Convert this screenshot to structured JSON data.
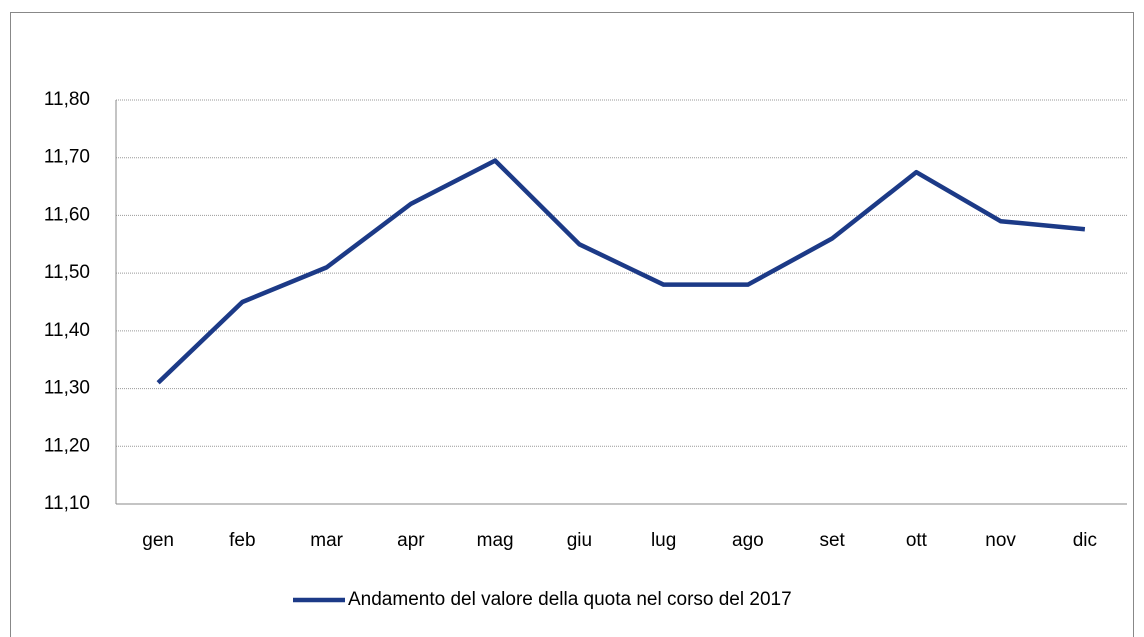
{
  "chart_data": {
    "type": "line",
    "categories": [
      "gen",
      "feb",
      "mar",
      "apr",
      "mag",
      "giu",
      "lug",
      "ago",
      "set",
      "ott",
      "nov",
      "dic"
    ],
    "series": [
      {
        "name": "Andamento del valore della quota nel corso del 2017",
        "color": "#1c3a87",
        "values": [
          11.31,
          11.45,
          11.51,
          11.62,
          11.695,
          11.55,
          11.48,
          11.48,
          11.56,
          11.675,
          11.59,
          11.576
        ]
      }
    ],
    "ylim": [
      11.1,
      11.8
    ],
    "yticks": [
      {
        "value": 11.1,
        "label": "11,10"
      },
      {
        "value": 11.2,
        "label": "11,20"
      },
      {
        "value": 11.3,
        "label": "11,30"
      },
      {
        "value": 11.4,
        "label": "11,40"
      },
      {
        "value": 11.5,
        "label": "11,50"
      },
      {
        "value": 11.6,
        "label": "11,60"
      },
      {
        "value": 11.7,
        "label": "11,70"
      },
      {
        "value": 11.8,
        "label": "11,80"
      }
    ],
    "grid": true,
    "legend": "bottom"
  }
}
